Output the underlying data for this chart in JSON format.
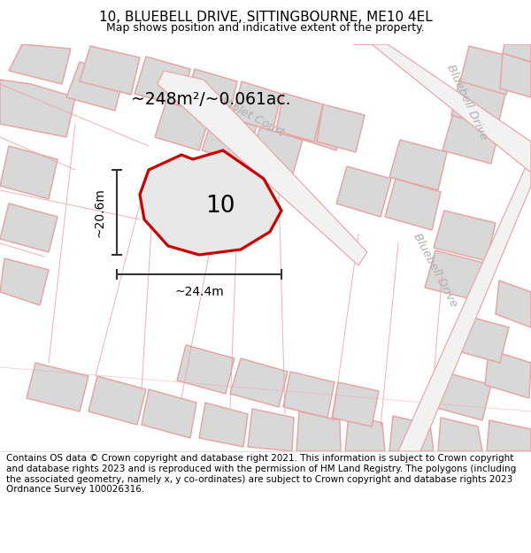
{
  "title_line1": "10, BLUEBELL DRIVE, SITTINGBOURNE, ME10 4EL",
  "title_line2": "Map shows position and indicative extent of the property.",
  "footer_text": "Contains OS data © Crown copyright and database right 2021. This information is subject to Crown copyright and database rights 2023 and is reproduced with the permission of HM Land Registry. The polygons (including the associated geometry, namely x, y co-ordinates) are subject to Crown copyright and database rights 2023 Ordnance Survey 100026316.",
  "area_label": "~248m²/~0.061ac.",
  "width_label": "~24.4m",
  "height_label": "~20.6m",
  "plot_number": "10",
  "bg_color": "#ffffff",
  "map_bg": "#f9f9f9",
  "plot_fill": "#e8e8e8",
  "plot_outline_color": "#cc0000",
  "road_fill": "#f2f2f2",
  "building_fill": "#d8d8d8",
  "building_outline": "#e8a0a0",
  "road_outline": "#e8a0a0",
  "street_label_color": "#b0b0b0",
  "dim_color": "#333333",
  "title_fontsize": 11,
  "subtitle_fontsize": 9,
  "footer_fontsize": 7.5
}
